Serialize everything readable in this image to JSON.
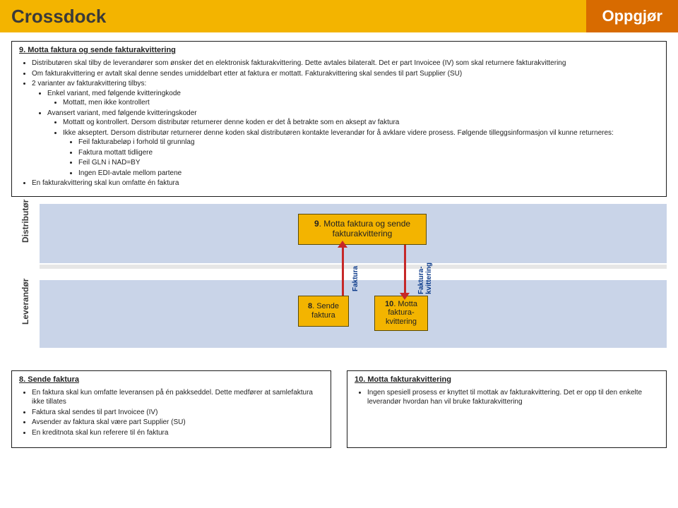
{
  "header": {
    "title": "Crossdock",
    "badge": "Oppgjør"
  },
  "panel_top": {
    "title": "9. Motta faktura og sende fakturakvittering",
    "b1": "Distributøren skal tilby de leverandører som ønsker det en elektronisk fakturakvittering. Dette avtales bilateralt. Det er part Invoicee (IV) som skal returnere fakturakvittering",
    "b2": "Om fakturakvittering er avtalt skal denne sendes umiddelbart etter at faktura er mottatt. Fakturakvittering skal sendes til part Supplier (SU)",
    "b3": "2 varianter av fakturakvittering tilbys:",
    "b3a": "Enkel variant, med følgende kvitteringkode",
    "b3a1": "Mottatt, men ikke kontrollert",
    "b3b": "Avansert variant, med følgende kvitteringskoder",
    "b3b1": "Mottatt og kontrollert. Dersom distributør returnerer denne koden er det å betrakte som en aksept av faktura",
    "b3b2": "Ikke akseptert. Dersom distributør returnerer denne koden skal distributøren kontakte leverandør for å avklare videre prosess. Følgende tilleggsinformasjon vil kunne returneres:",
    "b3b2a": "Feil fakturabeløp i forhold til grunnlag",
    "b3b2b": "Faktura mottatt tidligere",
    "b3b2c": "Feil GLN i NAD=BY",
    "b3b2d": "Ingen EDI-avtale mellom partene",
    "b4": "En fakturakvittering skal kun omfatte én faktura"
  },
  "lanes": {
    "distributor": "Distributør",
    "leverandor": "Leverandør"
  },
  "flow": {
    "box9_num": "9",
    "box9_txt": ". Motta faktura og sende fakturakvittering",
    "box8_num": "8",
    "box8_txt": ". Sende faktura",
    "box10_num": "10",
    "box10_txt": ". Motta faktura-kvittering",
    "arrow_up_label": "Faktura",
    "arrow_down_label": "Faktura-\nkvittering"
  },
  "panel_left": {
    "title": "8. Sende faktura",
    "b1": "En faktura skal kun omfatte leveransen på én pakkseddel. Dette medfører at samlefaktura ikke tillates",
    "b2": "Faktura skal sendes til part Invoicee (IV)",
    "b3": "Avsender av faktura skal være part Supplier (SU)",
    "b4": "En kreditnota skal kun referere til én faktura"
  },
  "panel_right": {
    "title": "10. Motta fakturakvittering",
    "b1": "Ingen spesiell prosess er knyttet til mottak av fakturakvittering. Det er opp til den enkelte leverandør hvordan han vil bruke fakturakvittering"
  },
  "colors": {
    "header_bg": "#f3b400",
    "badge_bg": "#d86b00",
    "lane_bg": "#c9d4e8",
    "box_bg": "#f3b400",
    "arrow": "#c62828",
    "arrow_label": "#0b3a8a"
  }
}
